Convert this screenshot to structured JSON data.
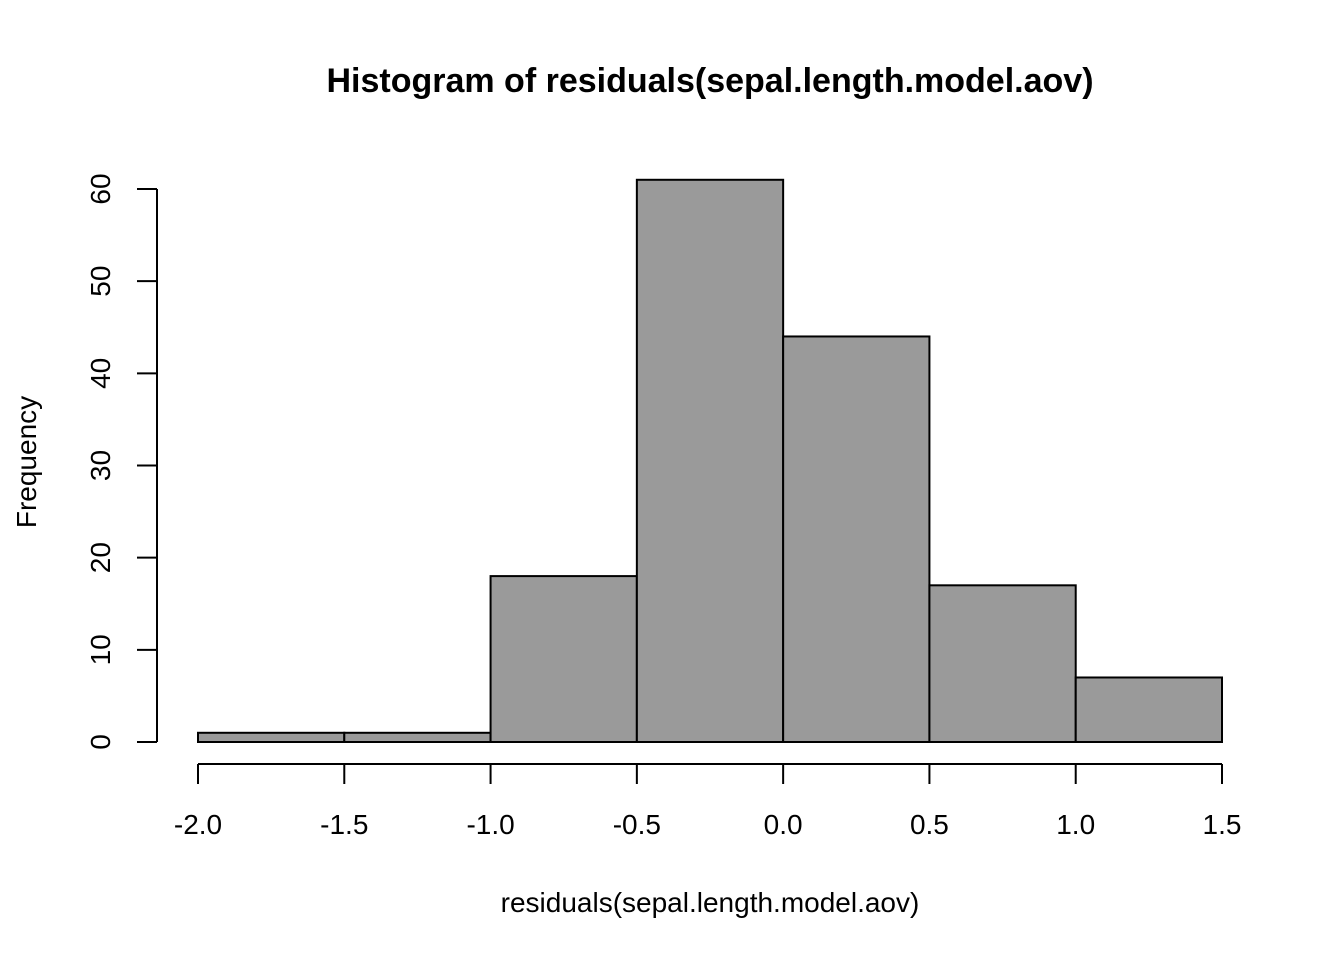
{
  "chart_data": {
    "type": "bar",
    "title": "Histogram of residuals(sepal.length.model.aov)",
    "xlabel": "residuals(sepal.length.model.aov)",
    "ylabel": "Frequency",
    "bins": [
      {
        "start": -2.0,
        "end": -1.5,
        "count": 1
      },
      {
        "start": -1.5,
        "end": -1.0,
        "count": 1
      },
      {
        "start": -1.0,
        "end": -0.5,
        "count": 18
      },
      {
        "start": -0.5,
        "end": 0.0,
        "count": 61
      },
      {
        "start": 0.0,
        "end": 0.5,
        "count": 44
      },
      {
        "start": 0.5,
        "end": 1.0,
        "count": 17
      },
      {
        "start": 1.0,
        "end": 1.5,
        "count": 7
      }
    ],
    "xlim": [
      -2.0,
      1.5
    ],
    "ylim": [
      0,
      60
    ],
    "x_ticks": [
      "-2.0",
      "-1.5",
      "-1.0",
      "-0.5",
      "0.0",
      "0.5",
      "1.0",
      "1.5"
    ],
    "y_ticks": [
      "0",
      "10",
      "20",
      "30",
      "40",
      "50",
      "60"
    ],
    "bar_color": "#9a9a9a",
    "grid": false,
    "legend": "none"
  }
}
